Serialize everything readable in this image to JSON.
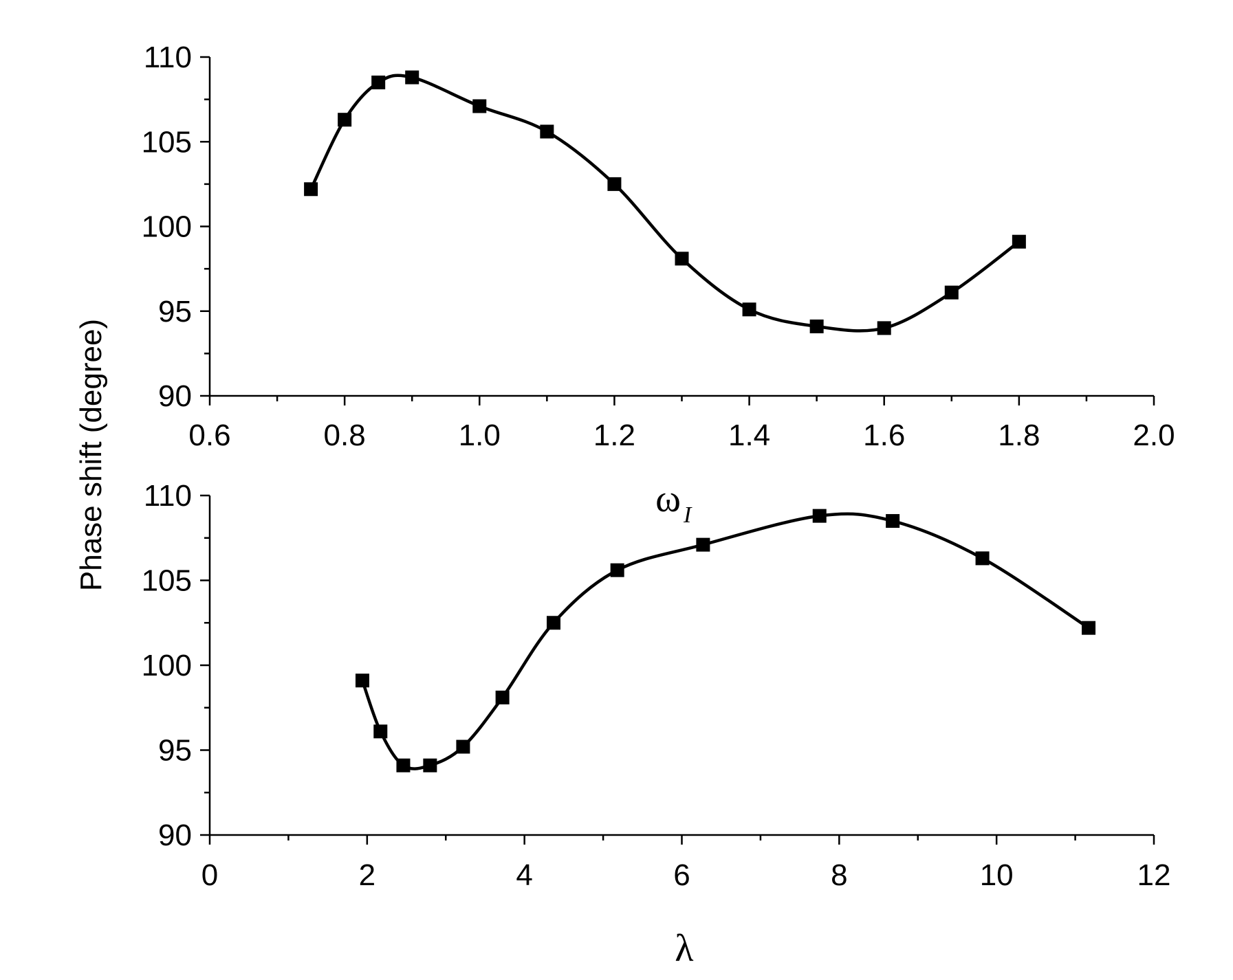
{
  "chart_data": [
    {
      "type": "line",
      "title": "",
      "xlabel": "ω",
      "xlabel_subscript": "I",
      "ylabel": "Phase shift (degree)",
      "xlim": [
        0.6,
        2.0
      ],
      "ylim": [
        90,
        110
      ],
      "xticks": [
        "0.6",
        "0.8",
        "1.0",
        "1.2",
        "1.4",
        "1.6",
        "1.8",
        "2.0"
      ],
      "yticks": [
        "90",
        "95",
        "100",
        "105",
        "110"
      ],
      "marker": "square",
      "series": [
        {
          "x": [
            0.75,
            0.8,
            0.85,
            0.9,
            1.0,
            1.1,
            1.2,
            1.3,
            1.4,
            1.5,
            1.6,
            1.7,
            1.8
          ],
          "y": [
            102.2,
            106.3,
            108.5,
            108.8,
            107.1,
            105.6,
            102.5,
            98.1,
            95.1,
            94.1,
            94.0,
            96.1,
            99.1
          ]
        }
      ]
    },
    {
      "type": "line",
      "title": "",
      "xlabel": "λ",
      "ylabel": "Phase shift (degree)",
      "xlim": [
        0,
        12
      ],
      "ylim": [
        90,
        110
      ],
      "xticks": [
        "0",
        "2",
        "4",
        "6",
        "8",
        "10",
        "12"
      ],
      "yticks": [
        "90",
        "95",
        "100",
        "105",
        "110"
      ],
      "marker": "square",
      "series": [
        {
          "x": [
            1.94,
            2.17,
            2.46,
            2.8,
            3.22,
            3.72,
            4.37,
            5.18,
            6.27,
            7.75,
            8.68,
            9.82,
            11.17
          ],
          "y": [
            99.1,
            96.1,
            94.1,
            94.1,
            95.2,
            98.1,
            102.5,
            105.6,
            107.1,
            108.8,
            108.5,
            106.3,
            102.2
          ]
        }
      ]
    }
  ]
}
